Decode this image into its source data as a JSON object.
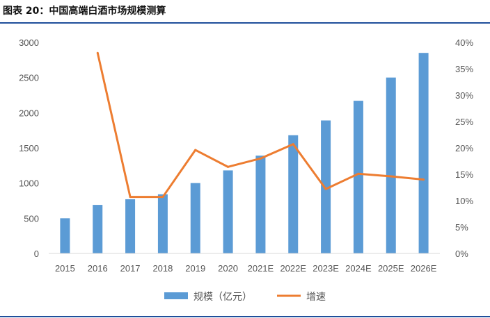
{
  "figure": {
    "title": "图表 20：中国高端白酒市场规模测算"
  },
  "colors": {
    "bar": "#5b9bd5",
    "line": "#ed7d31",
    "axis": "#d9d9d9",
    "rule": "#1f4e9a"
  },
  "chart_data": {
    "type": "bar",
    "title": "",
    "categories": [
      "2015",
      "2016",
      "2017",
      "2018",
      "2019",
      "2020",
      "2021E",
      "2022E",
      "2023E",
      "2024E",
      "2025E",
      "2026E"
    ],
    "series": [
      {
        "name": "规模（亿元）",
        "type": "bar",
        "axis": "left",
        "values": [
          500,
          690,
          770,
          840,
          1000,
          1180,
          1390,
          1680,
          1890,
          2170,
          2500,
          2850
        ]
      },
      {
        "name": "增速",
        "type": "line",
        "axis": "right",
        "values": [
          null,
          0.38,
          0.107,
          0.107,
          0.196,
          0.164,
          0.18,
          0.207,
          0.122,
          0.151,
          0.146,
          0.14
        ]
      }
    ],
    "y_left": {
      "min": 0,
      "max": 3000,
      "ticks": [
        0,
        500,
        1000,
        1500,
        2000,
        2500,
        3000
      ],
      "labels": [
        "0",
        "500",
        "1000",
        "1500",
        "2000",
        "2500",
        "3000"
      ]
    },
    "y_right": {
      "min": 0,
      "max": 0.4,
      "ticks": [
        0,
        0.05,
        0.1,
        0.15,
        0.2,
        0.25,
        0.3,
        0.35,
        0.4
      ],
      "labels": [
        "0%",
        "5%",
        "10%",
        "15%",
        "20%",
        "25%",
        "30%",
        "35%",
        "40%"
      ]
    },
    "xlabel": "",
    "ylabel": "",
    "grid": false,
    "legend_position": "bottom"
  }
}
